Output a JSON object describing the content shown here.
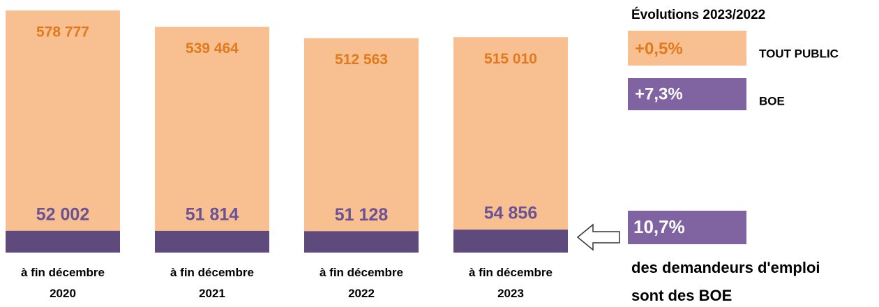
{
  "chart_data": {
    "type": "bar",
    "categories": [
      "à fin décembre 2020",
      "à fin décembre 2021",
      "à fin décembre 2022",
      "à fin décembre 2023"
    ],
    "series": [
      {
        "name": "TOUT PUBLIC",
        "color": "#f8c090",
        "label_color": "#e07a1e",
        "values": [
          578777,
          539464,
          512563,
          515010
        ],
        "value_labels": [
          "578 777",
          "539 464",
          "512 563",
          "515 010"
        ]
      },
      {
        "name": "BOE",
        "color": "#5e4a7c",
        "label_color": "#6a5294",
        "values": [
          52002,
          51814,
          51128,
          54856
        ],
        "value_labels": [
          "52 002",
          "51 814",
          "51 128",
          "54 856"
        ]
      }
    ],
    "evolution_title": "Évolutions 2023/2022",
    "evolutions": [
      "+0,5%",
      "+7,3%"
    ],
    "share": "10,7%",
    "share_text": [
      "des demandeurs d'emploi",
      "sont des BOE"
    ]
  }
}
